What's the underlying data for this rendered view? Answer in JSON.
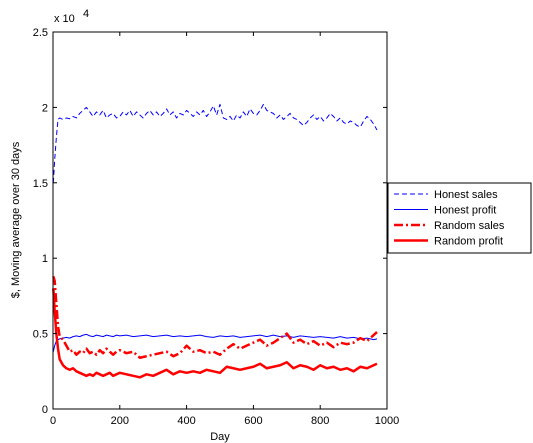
{
  "chart_data": {
    "type": "line",
    "title": "",
    "xlabel": "Day",
    "ylabel": "$, Moving average over 30 days",
    "xlim": [
      0,
      1000
    ],
    "ylim": [
      0,
      25000
    ],
    "x_ticks": [
      0,
      200,
      400,
      600,
      800,
      1000
    ],
    "y_ticks": [
      0,
      0.5,
      1,
      1.5,
      2,
      2.5
    ],
    "x_tick_labels": [
      "0",
      "200",
      "400",
      "600",
      "800",
      "1000"
    ],
    "y_tick_labels": [
      "0",
      "0.5",
      "1",
      "1.5",
      "2",
      "2.5"
    ],
    "y_exponent_label": "x 10",
    "y_exponent_power": "4",
    "grid": false,
    "legend_position": "outside-right",
    "series": [
      {
        "name": "Honest sales",
        "color": "#0000ff",
        "style": "dashed",
        "x": [
          1,
          5,
          10,
          15,
          20,
          30,
          40,
          50,
          60,
          70,
          80,
          90,
          100,
          110,
          120,
          130,
          140,
          150,
          160,
          170,
          180,
          190,
          200,
          210,
          220,
          230,
          240,
          250,
          260,
          270,
          280,
          290,
          300,
          310,
          320,
          330,
          340,
          350,
          360,
          370,
          380,
          390,
          400,
          410,
          420,
          430,
          440,
          450,
          460,
          470,
          480,
          490,
          500,
          510,
          520,
          530,
          540,
          550,
          560,
          570,
          580,
          590,
          600,
          610,
          620,
          630,
          640,
          650,
          660,
          670,
          680,
          690,
          700,
          710,
          720,
          730,
          740,
          750,
          760,
          770,
          780,
          790,
          800,
          810,
          820,
          830,
          840,
          850,
          860,
          870,
          880,
          890,
          900,
          910,
          920,
          930,
          940,
          950,
          960,
          970
        ],
        "y": [
          15000,
          16500,
          18000,
          19200,
          19300,
          19200,
          19300,
          19250,
          19400,
          19300,
          19600,
          19800,
          20000,
          19700,
          19400,
          19700,
          19500,
          19800,
          19300,
          19500,
          19600,
          19300,
          19400,
          19700,
          19500,
          19800,
          19400,
          19700,
          19500,
          19300,
          19600,
          19800,
          19500,
          19700,
          19400,
          19600,
          19900,
          19500,
          19700,
          19300,
          19600,
          19500,
          19800,
          19600,
          19400,
          19700,
          19500,
          19800,
          19400,
          19700,
          20100,
          19500,
          20200,
          19300,
          19200,
          19400,
          19100,
          19500,
          19300,
          19700,
          19400,
          19900,
          19600,
          19500,
          19800,
          20200,
          19800,
          19700,
          19600,
          19300,
          19500,
          19200,
          19400,
          19600,
          19300,
          19200,
          19000,
          18800,
          19000,
          19300,
          19500,
          19200,
          19400,
          19100,
          19300,
          19600,
          19400,
          19100,
          19300,
          19000,
          18900,
          19100,
          19000,
          18800,
          18700,
          19100,
          19400,
          19200,
          18900,
          18500
        ]
      },
      {
        "name": "Honest profit",
        "color": "#0000ff",
        "style": "solid",
        "x": [
          1,
          5,
          10,
          15,
          20,
          30,
          40,
          50,
          60,
          70,
          80,
          90,
          100,
          110,
          120,
          130,
          140,
          150,
          160,
          170,
          180,
          190,
          200,
          220,
          240,
          260,
          280,
          300,
          320,
          340,
          360,
          380,
          400,
          420,
          440,
          460,
          480,
          500,
          520,
          540,
          560,
          580,
          600,
          620,
          640,
          660,
          680,
          700,
          720,
          740,
          760,
          780,
          800,
          820,
          840,
          860,
          880,
          900,
          920,
          940,
          960,
          970
        ],
        "y": [
          3800,
          4200,
          4500,
          4600,
          4650,
          4700,
          4750,
          4700,
          4800,
          4850,
          4800,
          4900,
          4950,
          4850,
          4800,
          4900,
          4850,
          4800,
          4900,
          4850,
          4800,
          4900,
          4850,
          4900,
          4800,
          4850,
          4900,
          4800,
          4850,
          4900,
          4800,
          4850,
          4800,
          4850,
          4900,
          4800,
          4750,
          4850,
          4800,
          4850,
          4750,
          4800,
          4850,
          4900,
          4800,
          4900,
          4800,
          4850,
          4750,
          4850,
          4800,
          4750,
          4800,
          4750,
          4700,
          4800,
          4700,
          4750,
          4650,
          4700,
          4600,
          4650
        ]
      },
      {
        "name": "Random sales",
        "color": "#ff0000",
        "style": "dashdot",
        "x": [
          1,
          5,
          10,
          15,
          20,
          30,
          40,
          50,
          60,
          70,
          80,
          90,
          100,
          110,
          120,
          130,
          140,
          150,
          160,
          170,
          180,
          190,
          200,
          220,
          240,
          260,
          280,
          300,
          320,
          340,
          360,
          380,
          400,
          420,
          440,
          460,
          480,
          500,
          520,
          540,
          560,
          580,
          600,
          620,
          640,
          660,
          680,
          700,
          720,
          740,
          760,
          780,
          800,
          820,
          840,
          860,
          880,
          900,
          920,
          940,
          960,
          970
        ],
        "y": [
          8800,
          8500,
          7000,
          5500,
          4800,
          4600,
          4200,
          3800,
          3900,
          3600,
          3800,
          3700,
          4000,
          3700,
          3800,
          3600,
          3900,
          3700,
          4000,
          3800,
          3600,
          3800,
          3900,
          3700,
          3800,
          3400,
          3500,
          3600,
          3700,
          3800,
          3500,
          3700,
          4200,
          3800,
          3900,
          3700,
          3800,
          3600,
          4000,
          4300,
          4000,
          4200,
          4400,
          4600,
          4200,
          4400,
          4700,
          5000,
          4400,
          4600,
          4300,
          4500,
          4200,
          4400,
          4100,
          4400,
          4300,
          4400,
          4700,
          4500,
          4900,
          5100
        ]
      },
      {
        "name": "Random profit",
        "color": "#ff0000",
        "style": "solid-thick",
        "x": [
          1,
          5,
          10,
          15,
          20,
          30,
          40,
          50,
          60,
          70,
          80,
          90,
          100,
          110,
          120,
          130,
          140,
          150,
          160,
          170,
          180,
          190,
          200,
          220,
          240,
          260,
          280,
          300,
          320,
          340,
          360,
          380,
          400,
          420,
          440,
          460,
          480,
          500,
          520,
          540,
          560,
          580,
          600,
          620,
          640,
          660,
          680,
          700,
          720,
          740,
          760,
          780,
          800,
          820,
          840,
          860,
          880,
          900,
          920,
          940,
          960,
          970
        ],
        "y": [
          8000,
          6500,
          5000,
          4000,
          3300,
          2900,
          2700,
          2600,
          2700,
          2500,
          2400,
          2300,
          2200,
          2300,
          2200,
          2400,
          2300,
          2200,
          2300,
          2400,
          2200,
          2300,
          2400,
          2300,
          2200,
          2100,
          2300,
          2200,
          2400,
          2600,
          2300,
          2500,
          2400,
          2500,
          2400,
          2600,
          2500,
          2400,
          2800,
          2700,
          2600,
          2700,
          2800,
          3000,
          2700,
          2800,
          2900,
          3100,
          2700,
          2900,
          2800,
          2600,
          2900,
          2700,
          2800,
          2600,
          2700,
          2500,
          2800,
          2700,
          2900,
          3000
        ]
      }
    ]
  }
}
